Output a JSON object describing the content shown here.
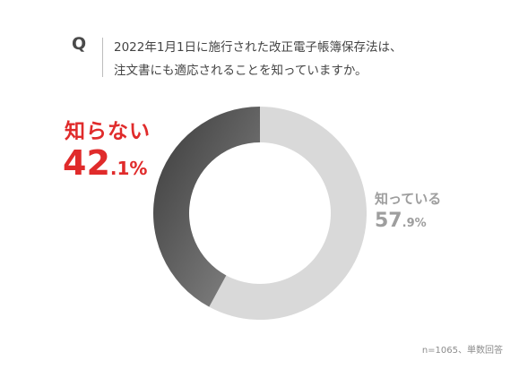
{
  "question": {
    "mark": "Q",
    "line1": "2022年1月1日に施行された改正電子帳簿保存法は、",
    "line2": "注文書にも適応されることを知っていますか。"
  },
  "chart_data": {
    "type": "pie",
    "categories": [
      "知らない",
      "知っている"
    ],
    "values": [
      42.1,
      57.9
    ],
    "unit": "%",
    "colors": [
      "#6b6b6b",
      "#d9d9d9"
    ],
    "labels": [
      {
        "name": "知らない",
        "int": "42",
        "dec": ".1",
        "pct": "%",
        "color": "#e02b2b"
      },
      {
        "name": "知っている",
        "int": "57",
        "dec": ".9",
        "pct": "%",
        "color": "#9e9e9e"
      }
    ]
  },
  "note": "n=1065、単数回答"
}
